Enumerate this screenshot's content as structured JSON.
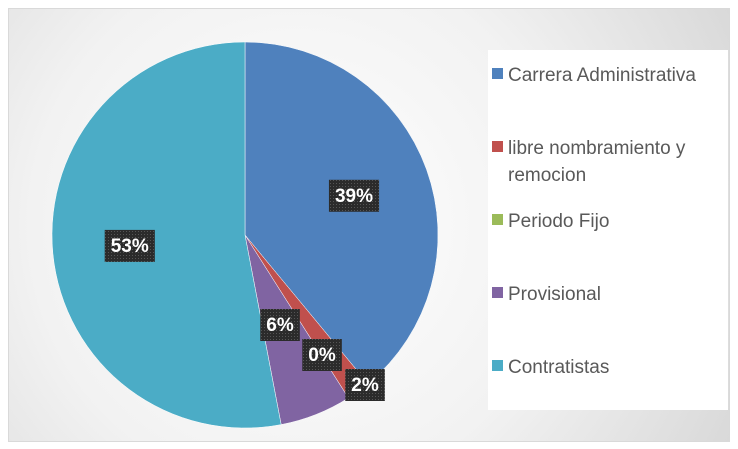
{
  "chart_data": {
    "type": "pie",
    "categories": [
      "Carrera Administrativa",
      "libre nombramiento y remocion",
      "Periodo Fijo",
      "Provisional",
      "Contratistas"
    ],
    "values": [
      39,
      2,
      0,
      6,
      53
    ],
    "value_labels": [
      "39%",
      "2%",
      "0%",
      "6%",
      "53%"
    ],
    "colors": [
      "#4f81bd",
      "#c0504d",
      "#9bbb59",
      "#8064a2",
      "#4bacc6"
    ],
    "legend": "right"
  }
}
